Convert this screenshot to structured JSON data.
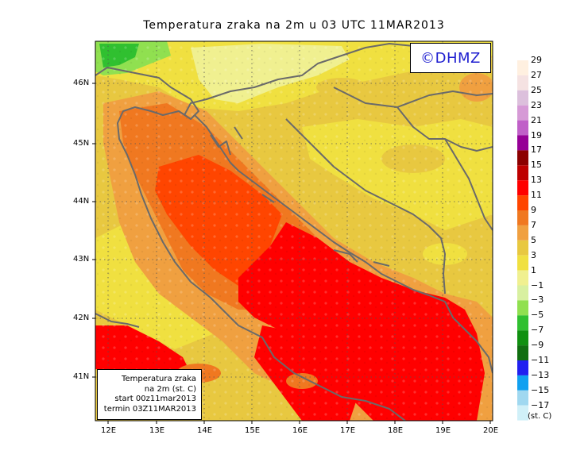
{
  "title": "Temperatura zraka na 2m u 03 UTC 11MAR2013",
  "copyright": "©DHMZ",
  "info_box": {
    "line1": "Temperatura zraka",
    "line2": "na 2m (st. C)",
    "line3": "start 00z11mar2013",
    "line4": "termin 03Z11MAR2013"
  },
  "lat_labels": [
    "46N",
    "45N",
    "44N",
    "43N",
    "42N",
    "41N"
  ],
  "lon_labels": [
    "12E",
    "13E",
    "14E",
    "15E",
    "16E",
    "17E",
    "18E",
    "19E",
    "20E"
  ],
  "colorbar": {
    "labels": [
      "29",
      "27",
      "25",
      "23",
      "21",
      "19",
      "17",
      "15",
      "13",
      "11",
      "9",
      "7",
      "5",
      "3",
      "1",
      "−1",
      "−3",
      "−5",
      "−7",
      "−9",
      "−11",
      "−13",
      "−15",
      "−17"
    ],
    "colors": [
      "#fff0e0",
      "#f5e2e2",
      "#dcc0dc",
      "#d69ad6",
      "#c060c8",
      "#960096",
      "#8c0000",
      "#be0000",
      "#ff0000",
      "#ff4500",
      "#f07820",
      "#f0a040",
      "#e8c840",
      "#f0e040",
      "#f0f090",
      "#d8f0a0",
      "#90e050",
      "#30c030",
      "#109010",
      "#106e10",
      "#2020f0",
      "#10a0f0",
      "#a0d8f0",
      "#d0f0f8"
    ],
    "units": "(st. C)"
  }
}
